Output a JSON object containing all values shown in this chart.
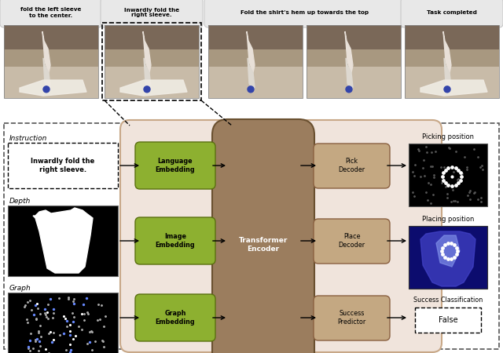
{
  "fig_width": 6.4,
  "fig_height": 4.5,
  "dpi": 100,
  "captions": [
    "fold the left sleeve\nto the center.",
    "Inwardly fold the\nright sleeve.",
    "Fold the shirt's hem up towards the top",
    "Task completed"
  ],
  "green_color": "#8db030",
  "light_pink_bg": "#f0e4dc",
  "transformer_color": "#9b7d5e",
  "decoder_color": "#c4a882",
  "instruction_text": "Inwardly fold the\nright sleeve.",
  "false_text": "False"
}
